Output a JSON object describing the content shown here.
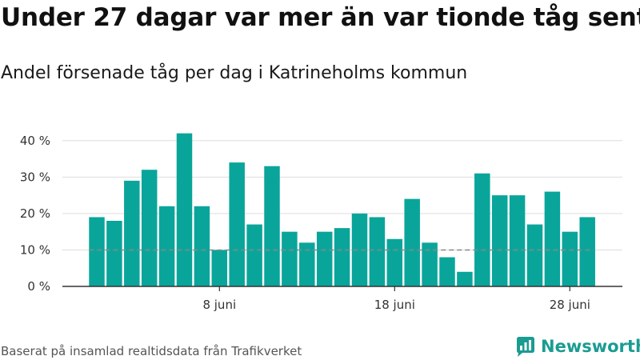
{
  "title": "Under 27 dagar var mer än var tionde tåg sent",
  "subtitle": "Andel försenade tåg per dag i Katrineholms kommun",
  "footer": {
    "source": "Baserat på insamlad realtidsdata från Trafikverket",
    "brand": "Newsworthy",
    "brand_icon": "bar-chart-logo-icon"
  },
  "colors": {
    "bar": "#0aa59a",
    "reference_line": "#888888",
    "grid": "#dddddd",
    "axis": "#333333",
    "brand": "#1a9c91"
  },
  "chart_data": {
    "type": "bar",
    "x": [
      "2019-06-01",
      "2019-06-02",
      "2019-06-03",
      "2019-06-04",
      "2019-06-05",
      "2019-06-06",
      "2019-06-07",
      "2019-06-08",
      "2019-06-09",
      "2019-06-10",
      "2019-06-11",
      "2019-06-12",
      "2019-06-13",
      "2019-06-14",
      "2019-06-15",
      "2019-06-16",
      "2019-06-17",
      "2019-06-18",
      "2019-06-19",
      "2019-06-20",
      "2019-06-21",
      "2019-06-22",
      "2019-06-23",
      "2019-06-24",
      "2019-06-25",
      "2019-06-26",
      "2019-06-27",
      "2019-06-28",
      "2019-06-29",
      "2019-06-30"
    ],
    "values": [
      19,
      18,
      29,
      32,
      22,
      42,
      22,
      10,
      34,
      17,
      33,
      15,
      12,
      15,
      16,
      20,
      19,
      13,
      24,
      12,
      8,
      4,
      31,
      25,
      25,
      17,
      26,
      15,
      19,
      0
    ],
    "value_unit": "percent",
    "ylim": [
      0,
      45
    ],
    "yticks": [
      0,
      10,
      20,
      30,
      40
    ],
    "ytick_labels": [
      "0 %",
      "10 %",
      "20 %",
      "30 %",
      "40 %"
    ],
    "xticks": [
      "8 juni",
      "18 juni",
      "28 juni"
    ],
    "xtick_dates": [
      "2019-06-08",
      "2019-06-18",
      "2019-06-28"
    ],
    "reference_line": 10,
    "grid": true,
    "legend": "none"
  }
}
